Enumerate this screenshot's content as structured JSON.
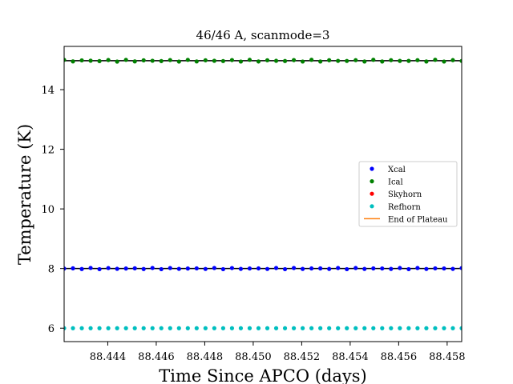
{
  "chart_data": {
    "type": "scatter",
    "title": "46/46 A, scanmode=3",
    "xlabel": "Time Since APCO (days)",
    "ylabel": "Temperature (K)",
    "xlim": [
      88.4422,
      88.4586
    ],
    "ylim": [
      5.55,
      15.45
    ],
    "xticks": [
      88.444,
      88.446,
      88.448,
      88.45,
      88.452,
      88.454,
      88.456,
      88.458
    ],
    "xtick_labels": [
      "88.444",
      "88.446",
      "88.448",
      "88.450",
      "88.452",
      "88.454",
      "88.456",
      "88.458"
    ],
    "yticks": [
      6,
      8,
      10,
      12,
      14
    ],
    "ytick_labels": [
      "6",
      "8",
      "10",
      "12",
      "14"
    ],
    "legend_position": "center-right",
    "n_points": 46,
    "series": [
      {
        "name": "Xcal",
        "color": "#0000ff",
        "mean": 8.0,
        "jitter": 0.02,
        "marker": "dot"
      },
      {
        "name": "Ical",
        "color": "#008000",
        "mean": 14.97,
        "jitter": 0.03,
        "marker": "dot"
      },
      {
        "name": "Skyhorn",
        "color": "#ff0000",
        "marker": "dot"
      },
      {
        "name": "Refhorn",
        "color": "#00bfbf",
        "mean": 6.0,
        "jitter": 0.0,
        "marker": "dot"
      },
      {
        "name": "End of Plateau",
        "color": "#ff7f0e",
        "marker": "line"
      }
    ],
    "reference_lines": [
      {
        "series": "Xcal",
        "y": 8.0,
        "color": "#000000"
      },
      {
        "series": "Ical",
        "y": 14.97,
        "color": "#000000"
      }
    ]
  }
}
